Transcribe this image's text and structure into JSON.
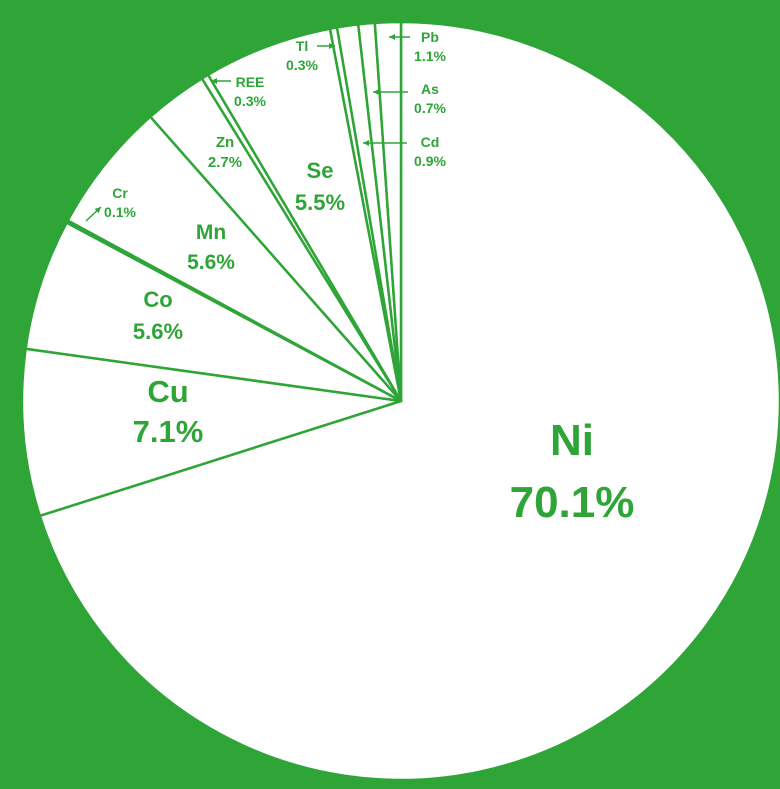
{
  "colors": {
    "background": "#2fa538",
    "slice_fill": "#ffffff",
    "stroke": "#2fa538",
    "text": "#2fa538"
  },
  "chart_data": {
    "type": "pie",
    "title": "",
    "start": "12 o'clock",
    "direction": "clockwise",
    "slices": [
      {
        "label": "Ni",
        "value": 70.1,
        "value_label": "70.1%"
      },
      {
        "label": "Cu",
        "value": 7.1,
        "value_label": "7.1%"
      },
      {
        "label": "Co",
        "value": 5.6,
        "value_label": "5.6%"
      },
      {
        "label": "Cr",
        "value": 0.1,
        "value_label": "0.1%"
      },
      {
        "label": "Mn",
        "value": 5.6,
        "value_label": "5.6%"
      },
      {
        "label": "Zn",
        "value": 2.7,
        "value_label": "2.7%"
      },
      {
        "label": "REE",
        "value": 0.3,
        "value_label": "0.3%"
      },
      {
        "label": "Se",
        "value": 5.5,
        "value_label": "5.5%"
      },
      {
        "label": "Tl",
        "value": 0.3,
        "value_label": "0.3%"
      },
      {
        "label": "Cd",
        "value": 0.9,
        "value_label": "0.9%"
      },
      {
        "label": "As",
        "value": 0.7,
        "value_label": "0.7%"
      },
      {
        "label": "Pb",
        "value": 1.1,
        "value_label": "1.1%"
      }
    ]
  }
}
